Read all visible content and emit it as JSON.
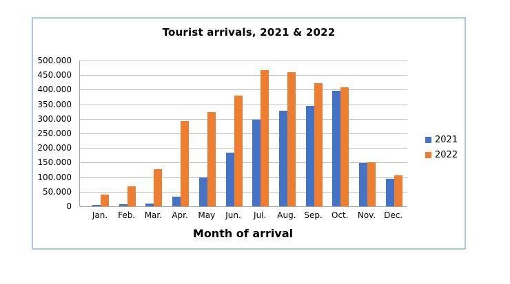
{
  "chart_data": {
    "type": "bar",
    "title": "Tourist arrivals, 2021 & 2022",
    "xlabel": "Month of arrival",
    "ylabel": "",
    "categories": [
      "Jan.",
      "Feb.",
      "Mar.",
      "Apr.",
      "May",
      "Jun.",
      "Jul.",
      "Aug.",
      "Sep.",
      "Oct.",
      "Nov.",
      "Dec."
    ],
    "series": [
      {
        "name": "2021",
        "color": "#4472C4",
        "values": [
          5000,
          7000,
          10000,
          33000,
          99000,
          183000,
          298000,
          327000,
          344000,
          397000,
          148000,
          94000
        ]
      },
      {
        "name": "2022",
        "color": "#ED7D31",
        "values": [
          39000,
          69000,
          128000,
          292000,
          322000,
          380000,
          466000,
          460000,
          421000,
          407000,
          150000,
          106000
        ]
      }
    ],
    "ylim": [
      0,
      500000
    ],
    "ytick_step": 50000,
    "ytick_labels": [
      "500.000",
      "450.000",
      "400.000",
      "350.000",
      "300.000",
      "250.000",
      "200.000",
      "150.000",
      "100.000",
      "50.000",
      "0"
    ],
    "grid": "horizontal",
    "legend_position": "right"
  },
  "colors": {
    "frame_border": "#A9C9E8",
    "gridline": "#C2C2C2",
    "axis": "#A6A6A6",
    "background": "#FFFFFF",
    "text": "#000000"
  }
}
